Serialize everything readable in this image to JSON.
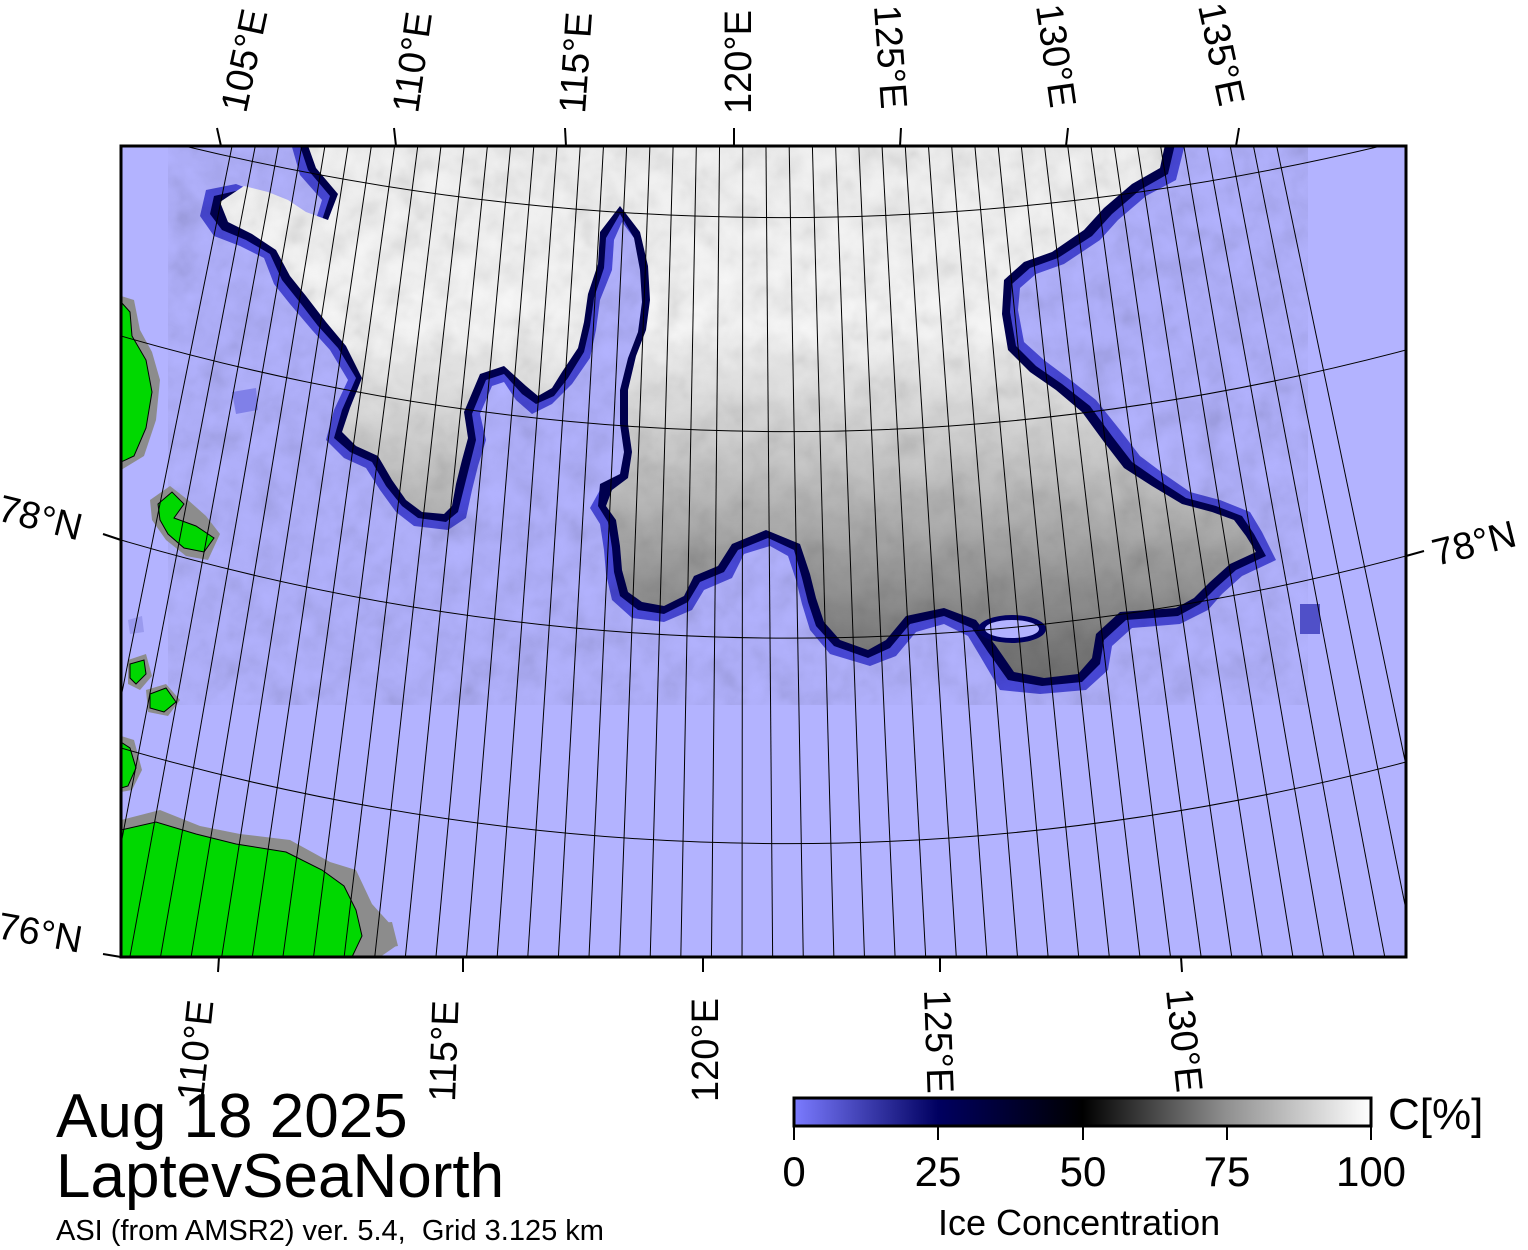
{
  "map": {
    "date": "Aug 18 2025",
    "region": "LaptevSeaNorth",
    "source": "ASI (from AMSR2) ver. 5.4,  Grid 3.125 km",
    "top_lon_labels": [
      "105°E",
      "110°E",
      "115°E",
      "120°E",
      "125°E",
      "130°E",
      "135°E"
    ],
    "bottom_lon_labels": [
      "110°E",
      "115°E",
      "120°E",
      "125°E",
      "130°E"
    ],
    "lat_labels": [
      "78°N",
      "78°N",
      "76°N"
    ],
    "colors": {
      "open_water": "#b3b3ff",
      "land": "#00d800",
      "land_mask": "#8c8c8c",
      "ice_high": "#ffffff",
      "ice_mid": "#808080",
      "ice_edge": "#000050"
    }
  },
  "colorbar": {
    "title": "Ice Concentration",
    "unit": "C[%]",
    "ticks": [
      "0",
      "25",
      "50",
      "75",
      "100"
    ],
    "range": [
      0,
      100
    ],
    "stops": [
      "#7b7bff",
      "#000060",
      "#000000",
      "#909090",
      "#ffffff"
    ]
  }
}
